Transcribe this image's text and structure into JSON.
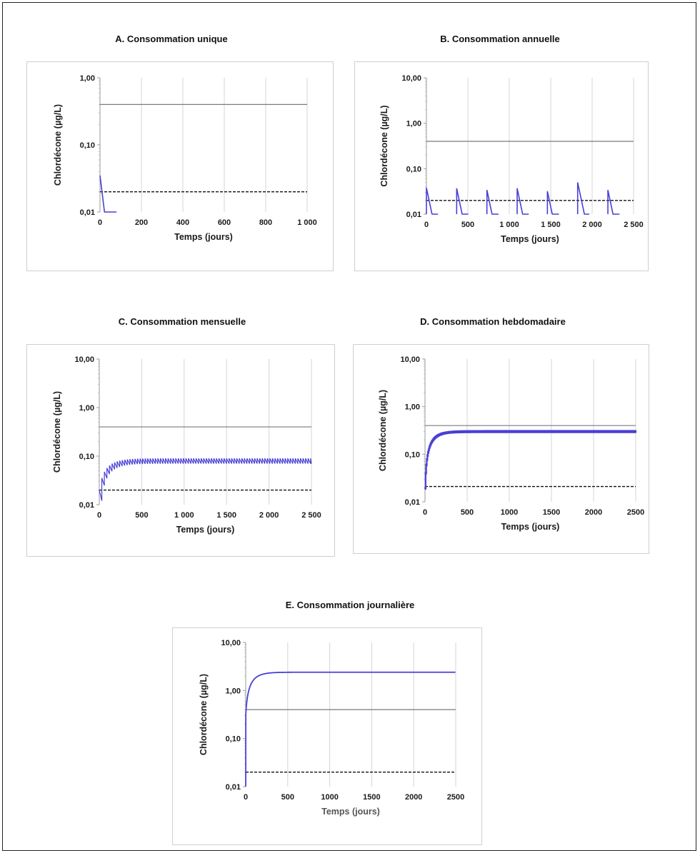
{
  "chart_data": [
    {
      "id": "A",
      "type": "line",
      "title": "A.  Consommation unique",
      "xlabel": "Temps (jours)",
      "ylabel": "Chlordécone (µg/L)",
      "yscale": "log",
      "ylim": [
        0.01,
        1
      ],
      "yticks": [
        {
          "v": 0.01,
          "label": "0,01"
        },
        {
          "v": 0.1,
          "label": "0,10"
        },
        {
          "v": 1,
          "label": "1,00"
        }
      ],
      "xlim": [
        0,
        1000
      ],
      "xticks": [
        {
          "v": 0,
          "label": "0"
        },
        {
          "v": 200,
          "label": "200"
        },
        {
          "v": 400,
          "label": "400"
        },
        {
          "v": 600,
          "label": "600"
        },
        {
          "v": 800,
          "label": "800"
        },
        {
          "v": 1000,
          "label": "1 000"
        }
      ],
      "grid": true,
      "reference_lines": [
        {
          "style": "solid",
          "color": "#7a7a7a",
          "y": 0.4
        },
        {
          "style": "dashed",
          "color": "#111111",
          "y": 0.02
        }
      ],
      "series": [
        {
          "color": "#4a3fd6",
          "dosing": "single",
          "doses_at": [
            0
          ],
          "peak": 0.035,
          "half_life": 12,
          "fill_steady": null
        }
      ]
    },
    {
      "id": "B",
      "type": "line",
      "title": "B.  Consommation annuelle",
      "xlabel": "Temps (jours)",
      "ylabel": "Chlordécone (µg/L)",
      "yscale": "log",
      "ylim": [
        0.01,
        10
      ],
      "yticks": [
        {
          "v": 0.01,
          "label": "0,01"
        },
        {
          "v": 0.1,
          "label": "0,10"
        },
        {
          "v": 1,
          "label": "1,00"
        },
        {
          "v": 10,
          "label": "10,00"
        }
      ],
      "xlim": [
        0,
        2500
      ],
      "xticks": [
        {
          "v": 0,
          "label": "0"
        },
        {
          "v": 500,
          "label": "500"
        },
        {
          "v": 1000,
          "label": "1 000"
        },
        {
          "v": 1500,
          "label": "1 500"
        },
        {
          "v": 2000,
          "label": "2 000"
        },
        {
          "v": 2500,
          "label": "2 500"
        }
      ],
      "grid": true,
      "reference_lines": [
        {
          "style": "solid",
          "color": "#7a7a7a",
          "y": 0.4
        },
        {
          "style": "dashed",
          "color": "#111111",
          "y": 0.02
        }
      ],
      "series": [
        {
          "color": "#4a3fd6",
          "dosing": "annual",
          "doses_at": [
            0,
            365,
            730,
            1095,
            1460,
            1825,
            2190
          ],
          "peaks": [
            0.038,
            0.037,
            0.034,
            0.037,
            0.032,
            0.05,
            0.034
          ],
          "half_life": 35
        }
      ]
    },
    {
      "id": "C",
      "type": "line",
      "title": "C. Consommation mensuelle",
      "xlabel": "Temps (jours)",
      "ylabel": "Chlordécone (µg/L)",
      "yscale": "log",
      "ylim": [
        0.01,
        10
      ],
      "yticks": [
        {
          "v": 0.01,
          "label": "0,01"
        },
        {
          "v": 0.1,
          "label": "0,10"
        },
        {
          "v": 1,
          "label": "1,00"
        },
        {
          "v": 10,
          "label": "10,00"
        }
      ],
      "xlim": [
        0,
        2500
      ],
      "xticks": [
        {
          "v": 0,
          "label": "0"
        },
        {
          "v": 500,
          "label": "500"
        },
        {
          "v": 1000,
          "label": "1 000"
        },
        {
          "v": 1500,
          "label": "1 500"
        },
        {
          "v": 2000,
          "label": "2 000"
        },
        {
          "v": 2500,
          "label": "2 500"
        }
      ],
      "grid": true,
      "reference_lines": [
        {
          "style": "solid",
          "color": "#7a7a7a",
          "y": 0.4
        },
        {
          "style": "dashed",
          "color": "#111111",
          "y": 0.02
        }
      ],
      "series": [
        {
          "color": "#4a3fd6",
          "dosing": "monthly",
          "interval": 30,
          "steady_low": 0.07,
          "steady_high": 0.09,
          "first_peak": 0.02,
          "tau": 120
        }
      ]
    },
    {
      "id": "D",
      "type": "line",
      "title": "D. Consommation hebdomadaire",
      "xlabel": "Temps (jours)",
      "ylabel": "Chlordécone (µg/L)",
      "yscale": "log",
      "ylim": [
        0.01,
        10
      ],
      "yticks": [
        {
          "v": 0.01,
          "label": "0,01"
        },
        {
          "v": 0.1,
          "label": "0,10"
        },
        {
          "v": 1,
          "label": "1,00"
        },
        {
          "v": 10,
          "label": "10,00"
        }
      ],
      "xlim": [
        0,
        2500
      ],
      "xticks": [
        {
          "v": 0,
          "label": "0"
        },
        {
          "v": 500,
          "label": "500"
        },
        {
          "v": 1000,
          "label": "1000"
        },
        {
          "v": 1500,
          "label": "1500"
        },
        {
          "v": 2000,
          "label": "2000"
        },
        {
          "v": 2500,
          "label": "2500"
        }
      ],
      "grid": true,
      "reference_lines": [
        {
          "style": "solid",
          "color": "#7a7a7a",
          "y": 0.4
        },
        {
          "style": "dashed",
          "color": "#111111",
          "y": 0.021
        }
      ],
      "series": [
        {
          "color": "#4a3fd6",
          "dosing": "weekly",
          "steady_low": 0.28,
          "steady_high": 0.32,
          "tau": 90
        }
      ]
    },
    {
      "id": "E",
      "type": "line",
      "title": "E. Consommation journalière",
      "xlabel": "Temps (jours)",
      "ylabel": "Chlordécone (µg/L)",
      "yscale": "log",
      "ylim": [
        0.01,
        10
      ],
      "yticks": [
        {
          "v": 0.01,
          "label": "0,01"
        },
        {
          "v": 0.1,
          "label": "0,10"
        },
        {
          "v": 1,
          "label": "1,00"
        },
        {
          "v": 10,
          "label": "10,00"
        }
      ],
      "xlim": [
        0,
        2500
      ],
      "xticks": [
        {
          "v": 0,
          "label": "0"
        },
        {
          "v": 500,
          "label": "500"
        },
        {
          "v": 1000,
          "label": "1000"
        },
        {
          "v": 1500,
          "label": "1500"
        },
        {
          "v": 2000,
          "label": "2000"
        },
        {
          "v": 2500,
          "label": "2500"
        }
      ],
      "grid": true,
      "reference_lines": [
        {
          "style": "solid",
          "color": "#7a7a7a",
          "y": 0.4
        },
        {
          "style": "dashed",
          "color": "#111111",
          "y": 0.02
        }
      ],
      "series": [
        {
          "color": "#4a3fd6",
          "dosing": "daily",
          "steady": 2.4,
          "tau": 90
        }
      ]
    }
  ]
}
